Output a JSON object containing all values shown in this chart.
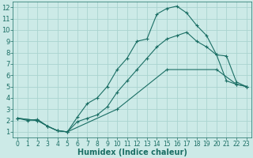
{
  "xlabel": "Humidex (Indice chaleur)",
  "background_color": "#cceae7",
  "grid_color": "#aad4d0",
  "line_color": "#1a6e64",
  "xlim": [
    -0.5,
    23.5
  ],
  "ylim": [
    0.5,
    12.5
  ],
  "xticks": [
    0,
    1,
    2,
    3,
    4,
    5,
    6,
    7,
    8,
    9,
    10,
    11,
    12,
    13,
    14,
    15,
    16,
    17,
    18,
    19,
    20,
    21,
    22,
    23
  ],
  "yticks": [
    1,
    2,
    3,
    4,
    5,
    6,
    7,
    8,
    9,
    10,
    11,
    12
  ],
  "lines": [
    {
      "x": [
        0,
        1,
        2,
        3,
        4,
        5,
        6,
        7,
        8,
        9,
        10,
        11,
        12,
        13,
        14,
        15,
        16,
        17,
        18,
        19,
        20,
        21,
        22,
        23
      ],
      "y": [
        2.2,
        2.0,
        2.1,
        1.5,
        1.1,
        1.0,
        2.3,
        3.5,
        4.0,
        5.0,
        6.5,
        7.5,
        9.0,
        9.2,
        11.4,
        11.9,
        12.1,
        11.5,
        10.4,
        9.5,
        7.8,
        7.7,
        5.4,
        5.0
      ]
    },
    {
      "x": [
        0,
        2,
        3,
        4,
        5,
        6,
        7,
        8,
        9,
        10,
        11,
        12,
        13,
        14,
        15,
        16,
        17,
        18,
        19,
        20,
        21,
        22,
        23
      ],
      "y": [
        2.2,
        2.0,
        1.5,
        1.1,
        1.0,
        1.9,
        2.2,
        2.5,
        3.2,
        4.5,
        5.5,
        6.5,
        7.5,
        8.5,
        9.2,
        9.5,
        9.8,
        9.0,
        8.5,
        7.8,
        5.5,
        5.2,
        5.0
      ]
    },
    {
      "x": [
        0,
        2,
        3,
        4,
        5,
        10,
        15,
        20,
        22,
        23
      ],
      "y": [
        2.2,
        2.0,
        1.5,
        1.1,
        1.0,
        3.0,
        6.5,
        6.5,
        5.2,
        5.0
      ]
    }
  ],
  "marker": "+",
  "markersize": 3,
  "linewidth": 0.8,
  "xlabel_fontsize": 7,
  "tick_fontsize_x": 5.5,
  "tick_fontsize_y": 6
}
